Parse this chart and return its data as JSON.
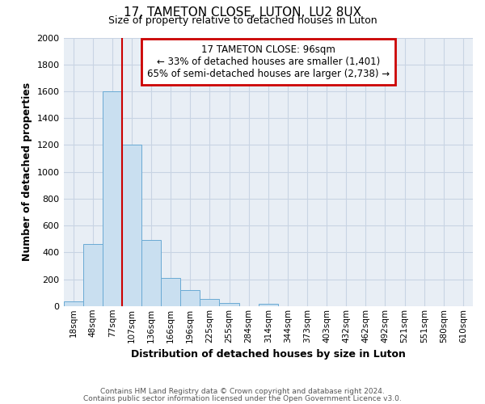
{
  "title": "17, TAMETON CLOSE, LUTON, LU2 8UX",
  "subtitle": "Size of property relative to detached houses in Luton",
  "xlabel": "Distribution of detached houses by size in Luton",
  "ylabel": "Number of detached properties",
  "bar_labels": [
    "18sqm",
    "48sqm",
    "77sqm",
    "107sqm",
    "136sqm",
    "166sqm",
    "196sqm",
    "225sqm",
    "255sqm",
    "284sqm",
    "314sqm",
    "344sqm",
    "373sqm",
    "403sqm",
    "432sqm",
    "462sqm",
    "492sqm",
    "521sqm",
    "551sqm",
    "580sqm",
    "610sqm"
  ],
  "bar_values": [
    35,
    460,
    1600,
    1200,
    490,
    210,
    120,
    50,
    20,
    0,
    15,
    0,
    0,
    0,
    0,
    0,
    0,
    0,
    0,
    0,
    0
  ],
  "bar_color": "#c9dff0",
  "bar_edge_color": "#6aaad4",
  "grid_color": "#c8d4e3",
  "bg_color": "#e8eef5",
  "plot_bg_color": "#e8eef5",
  "red_line_x": 2.5,
  "annotation_line1": "17 TAMETON CLOSE: 96sqm",
  "annotation_line2": "← 33% of detached houses are smaller (1,401)",
  "annotation_line3": "65% of semi-detached houses are larger (2,738) →",
  "annotation_box_color": "#ffffff",
  "annotation_box_edge": "#cc0000",
  "ylim": [
    0,
    2000
  ],
  "yticks": [
    0,
    200,
    400,
    600,
    800,
    1000,
    1200,
    1400,
    1600,
    1800,
    2000
  ],
  "footer1": "Contains HM Land Registry data © Crown copyright and database right 2024.",
  "footer2": "Contains public sector information licensed under the Open Government Licence v3.0."
}
